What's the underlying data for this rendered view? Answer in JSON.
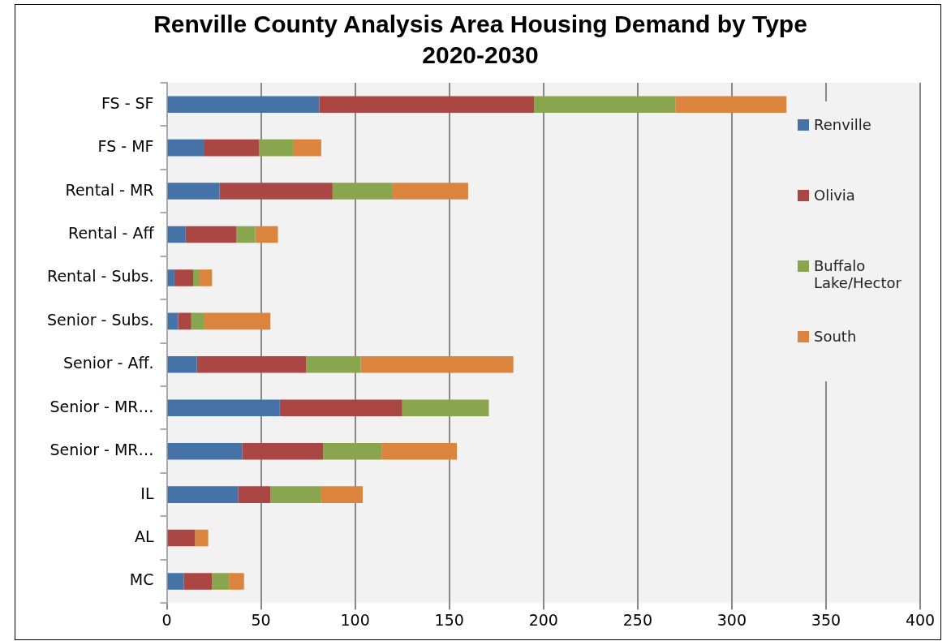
{
  "chart_data": {
    "type": "bar",
    "orientation": "horizontal",
    "stacked": true,
    "title": "Renville County Analysis Area Housing Demand by Type",
    "subtitle": "2020-2030",
    "categories": [
      "FS - SF",
      "FS - MF",
      "Rental - MR",
      "Rental - Aff",
      "Rental - Subs.",
      "Senior - Subs.",
      "Senior - Aff.",
      "Senior - MR…",
      "Senior - MR…",
      "IL",
      "AL",
      "MC"
    ],
    "series": [
      {
        "name": "Renville",
        "color": "#4572a7",
        "values": [
          81,
          20,
          28,
          10,
          4,
          6,
          16,
          60,
          40,
          38,
          0,
          9
        ]
      },
      {
        "name": "Olivia",
        "color": "#aa4643",
        "values": [
          114,
          29,
          60,
          27,
          10,
          7,
          58,
          65,
          43,
          17,
          15,
          15
        ]
      },
      {
        "name": "Buffalo Lake/Hector",
        "color": "#89a54e",
        "values": [
          75,
          18,
          32,
          10,
          3,
          7,
          29,
          46,
          31,
          27,
          0,
          9
        ]
      },
      {
        "name": "South",
        "color": "#db843d",
        "values": [
          59,
          15,
          40,
          12,
          7,
          35,
          81,
          0,
          40,
          22,
          7,
          8
        ]
      }
    ],
    "xlim": [
      0,
      400
    ],
    "xticks": [
      0,
      50,
      100,
      150,
      200,
      250,
      300,
      350,
      400
    ],
    "grid": "x",
    "legend": "top right"
  }
}
